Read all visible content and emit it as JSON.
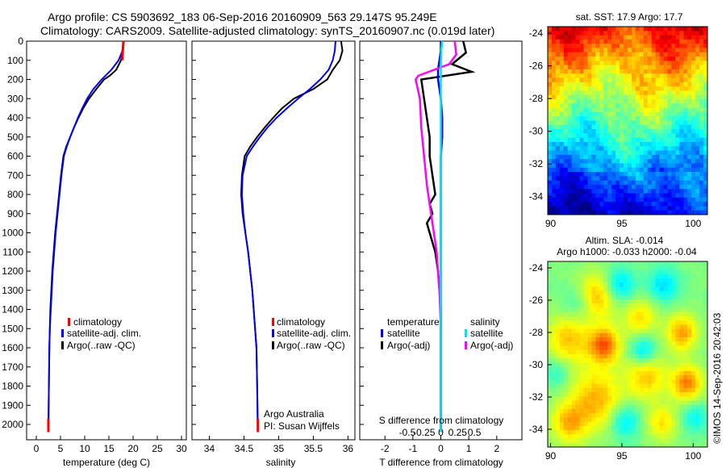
{
  "title": {
    "line1": "Argo profile: CS 5903692_183 06-Sep-2016 20160909_563 29.147S 95.249E",
    "line2": "Climatology: CARS2009. Satellite-adjusted climatology: synTS_20160907.nc (0.019d later)"
  },
  "watermark": "©IMOS 14-Sep-2016 20:42:03",
  "colors": {
    "climatology": "#ff0000",
    "satellite": "#0000ff",
    "argo": "#000000",
    "sal_satellite": "#00e5e5",
    "sal_argo": "#ff00ff"
  },
  "chart_data": [
    {
      "type": "line",
      "xlabel": "temperature (deg C)",
      "xlim": [
        -2,
        31
      ],
      "xticks": [
        "0",
        "5",
        "10",
        "15",
        "20",
        "25",
        "30"
      ],
      "ylim": [
        2080,
        0
      ],
      "yticks": [
        "0",
        "100",
        "200",
        "300",
        "400",
        "500",
        "600",
        "700",
        "800",
        "900",
        "1000",
        "1100",
        "1200",
        "1300",
        "1400",
        "1500",
        "1600",
        "1700",
        "1800",
        "1900",
        "2000"
      ],
      "legend": [
        "climatology",
        "satellite-adj. clim.",
        "Argo(..raw -QC)"
      ],
      "series": [
        {
          "name": "climatology",
          "x": [
            18.0,
            17.9,
            17.8,
            17.8
          ],
          "y": [
            0,
            40,
            80,
            100
          ]
        },
        {
          "name": "satellite-adj. clim.",
          "x": [
            18.0,
            17.8,
            17.0,
            15.5,
            13.5,
            11.8,
            10.5,
            9.5,
            8.6,
            7.8,
            7.0,
            6.3,
            5.7,
            5.2,
            4.8,
            4.4,
            4.0,
            3.7,
            3.4,
            3.2,
            3.0,
            2.8,
            2.7,
            2.6,
            2.5
          ],
          "y": [
            0,
            50,
            100,
            150,
            200,
            250,
            300,
            350,
            400,
            450,
            500,
            550,
            600,
            700,
            800,
            900,
            1000,
            1100,
            1200,
            1300,
            1400,
            1500,
            1600,
            1800,
            2040
          ]
        },
        {
          "name": "Argo(..raw -QC)",
          "x": [
            18.1,
            17.9,
            17.5,
            16.5,
            15.2,
            14.0,
            12.4,
            10.9,
            9.7,
            8.7,
            7.8,
            7.0,
            6.2,
            5.6,
            5.1,
            4.7,
            4.3,
            3.9,
            3.6,
            3.3,
            3.1,
            2.9,
            2.8,
            2.7,
            2.6,
            2.5
          ],
          "y": [
            0,
            50,
            100,
            150,
            180,
            200,
            250,
            300,
            350,
            400,
            450,
            500,
            550,
            600,
            700,
            800,
            900,
            1000,
            1100,
            1200,
            1300,
            1400,
            1500,
            1600,
            1800,
            2040
          ]
        }
      ]
    },
    {
      "type": "line",
      "xlabel": "salinity",
      "xlim": [
        33.75,
        36.1
      ],
      "xticks": [
        "34",
        "34.5",
        "35",
        "35.5",
        "36"
      ],
      "ylim": [
        2080,
        0
      ],
      "legend": [
        "climatology",
        "satellite-adj. clim.",
        "Argo(..raw -QC)"
      ],
      "annotation": [
        "Argo Australia",
        "PI: Susan Wijffels"
      ],
      "series": [
        {
          "name": "climatology",
          "x": [
            34.7,
            34.7
          ],
          "y": [
            1970,
            2040
          ]
        },
        {
          "name": "satellite-adj. clim.",
          "x": [
            35.82,
            35.81,
            35.78,
            35.72,
            35.6,
            35.45,
            35.28,
            35.12,
            34.97,
            34.84,
            34.73,
            34.63,
            34.54,
            34.48,
            34.47,
            34.49,
            34.52,
            34.56,
            34.59,
            34.62,
            34.64,
            34.66,
            34.68,
            34.69,
            34.7
          ],
          "y": [
            0,
            50,
            100,
            150,
            200,
            250,
            300,
            350,
            400,
            450,
            500,
            550,
            600,
            700,
            800,
            900,
            1000,
            1100,
            1200,
            1300,
            1400,
            1500,
            1600,
            1800,
            2040
          ]
        },
        {
          "name": "Argo(..raw -QC)",
          "x": [
            35.9,
            35.92,
            35.88,
            35.78,
            35.7,
            35.5,
            35.22,
            35.05,
            34.92,
            34.8,
            34.69,
            34.59,
            34.51,
            34.47,
            34.46,
            34.48,
            34.52,
            34.56,
            34.59,
            34.62,
            34.64,
            34.66,
            34.68,
            34.69,
            34.7
          ],
          "y": [
            0,
            50,
            100,
            150,
            200,
            250,
            300,
            350,
            400,
            450,
            500,
            550,
            600,
            700,
            800,
            900,
            1000,
            1100,
            1200,
            1300,
            1400,
            1500,
            1600,
            1800,
            2040
          ]
        }
      ]
    },
    {
      "type": "line",
      "xlabel_temperature": "T difference from climatology",
      "xlabel_salinity": "S difference from climatology",
      "xlim": [
        -2.9,
        2.9
      ],
      "xticks_temperature": [
        "-2",
        "-1",
        "0",
        "1",
        "2"
      ],
      "xticks_salinity": [
        "-0.5",
        "-0.25",
        "0",
        "0.25",
        "0.5"
      ],
      "ylim": [
        2080,
        0
      ],
      "legend_temperature": {
        "header": "temperature",
        "items": [
          "satellite",
          "Argo(-adj)"
        ]
      },
      "legend_salinity": {
        "header": "salinity",
        "items": [
          "satellite",
          "Argo(-adj)"
        ]
      },
      "series": [
        {
          "name": "temperature satellite",
          "x": [
            0.0,
            0.0,
            -0.05,
            -0.1,
            -0.1,
            0.0,
            0.05,
            0.05,
            0.0,
            0.0,
            0.0,
            0.0,
            0.0,
            0.0,
            0.0,
            0.0,
            0.0
          ],
          "y": [
            0,
            50,
            100,
            150,
            200,
            300,
            400,
            500,
            600,
            700,
            800,
            900,
            1000,
            1200,
            1500,
            1800,
            2040
          ]
        },
        {
          "name": "temperature Argo(-adj)",
          "x": [
            0.8,
            0.9,
            0.4,
            1.1,
            -0.7,
            -0.6,
            -0.5,
            -0.4,
            -0.4,
            -0.3,
            -0.2,
            -0.4,
            -0.3,
            -0.5,
            -0.4,
            -0.3,
            -0.2,
            -0.1,
            0.0,
            0.0,
            0.0
          ],
          "y": [
            0,
            60,
            120,
            160,
            200,
            300,
            400,
            500,
            600,
            700,
            800,
            850,
            900,
            950,
            1000,
            1050,
            1100,
            1200,
            1400,
            1700,
            2040
          ]
        },
        {
          "name": "salinity satellite",
          "x": [
            0.05,
            0.02,
            0.0,
            0.0,
            0.0,
            0.0,
            0.0,
            0.0,
            0.0,
            0.0,
            0.0
          ],
          "y": [
            0,
            40,
            100,
            200,
            400,
            700,
            1000,
            1300,
            1600,
            1900,
            2040
          ]
        },
        {
          "name": "salinity Argo(-adj)",
          "x": [
            0.5,
            0.55,
            0.3,
            -0.8,
            -0.9,
            -0.75,
            -0.7,
            -0.6,
            -0.5,
            -0.35,
            -0.25,
            -0.15,
            -0.1,
            -0.05,
            0.0,
            0.0
          ],
          "y": [
            0,
            70,
            120,
            180,
            200,
            300,
            450,
            600,
            750,
            900,
            1000,
            1100,
            1200,
            1300,
            1500,
            2040
          ]
        }
      ]
    },
    {
      "type": "heatmap",
      "title": "sat. SST: 17.9 Argo: 17.7",
      "xticks": [
        "90",
        "95",
        "100"
      ],
      "yticks": [
        "-24",
        "-26",
        "-28",
        "-30",
        "-32",
        "-34"
      ],
      "xlim": [
        89.8,
        101
      ],
      "ylim": [
        -35.1,
        -23.6
      ],
      "colormap": "jet"
    },
    {
      "type": "heatmap",
      "title_line1": "Altim. SLA: -0.014",
      "title_line2": "Argo h1000: -0.033 h2000: -0.04",
      "xticks": [
        "90",
        "95",
        "100"
      ],
      "yticks": [
        "-24",
        "-26",
        "-28",
        "-30",
        "-32",
        "-34"
      ],
      "xlim": [
        89.8,
        101
      ],
      "ylim": [
        -35.1,
        -23.6
      ],
      "colormap": "jet"
    }
  ]
}
